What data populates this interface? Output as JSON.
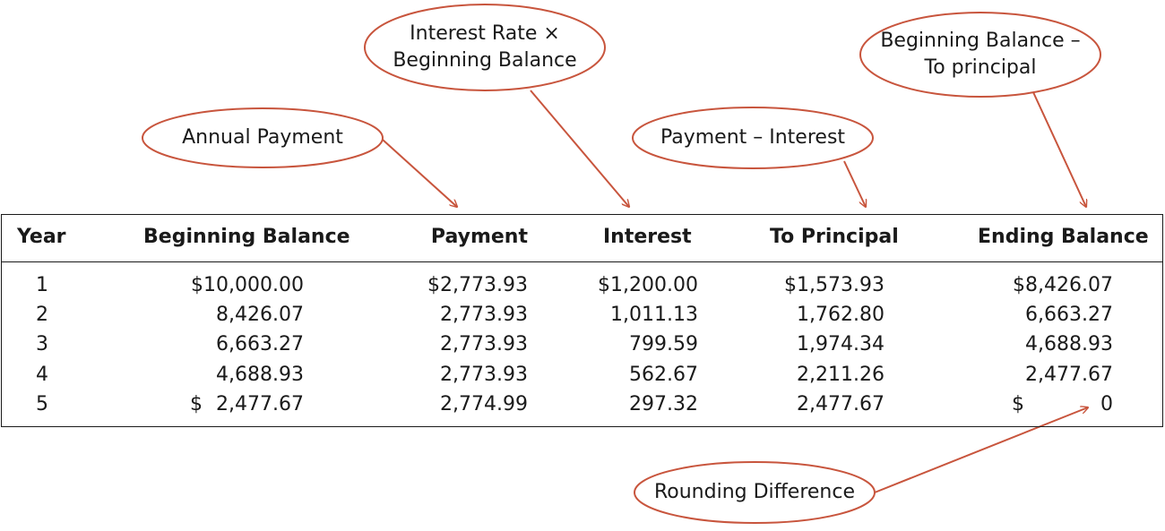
{
  "callouts": {
    "annual_payment": "Annual Payment",
    "interest_formula": "Interest Rate ×\nBeginning Balance",
    "principal_formula": "Payment –  Interest",
    "ending_formula": "Beginning Balance –\nTo principal",
    "rounding": "Rounding Difference"
  },
  "table": {
    "headers": [
      "Year",
      "Beginning Balance",
      "Payment",
      "Interest",
      "To Principal",
      "Ending Balance"
    ],
    "rows": [
      [
        "1",
        "$10,000.00",
        "$2,773.93",
        "$1,200.00",
        "$1,573.93",
        "$8,426.07"
      ],
      [
        "2",
        "8,426.07",
        "2,773.93",
        "1,011.13",
        "1,762.80",
        "6,663.27"
      ],
      [
        "3",
        "6,663.27",
        "2,773.93",
        "799.59",
        "1,974.34",
        "4,688.93"
      ],
      [
        "4",
        "4,688.93",
        "2,773.93",
        "562.67",
        "2,211.26",
        "2,477.67"
      ],
      [
        "5",
        "2,477.67",
        "2,774.99",
        "297.32",
        "2,477.67",
        "0"
      ]
    ],
    "row5_currency_symbol": "$"
  },
  "colors": {
    "callout_stroke": "#c8553d",
    "text": "#1a1a1a",
    "border": "#1a1a1a"
  }
}
